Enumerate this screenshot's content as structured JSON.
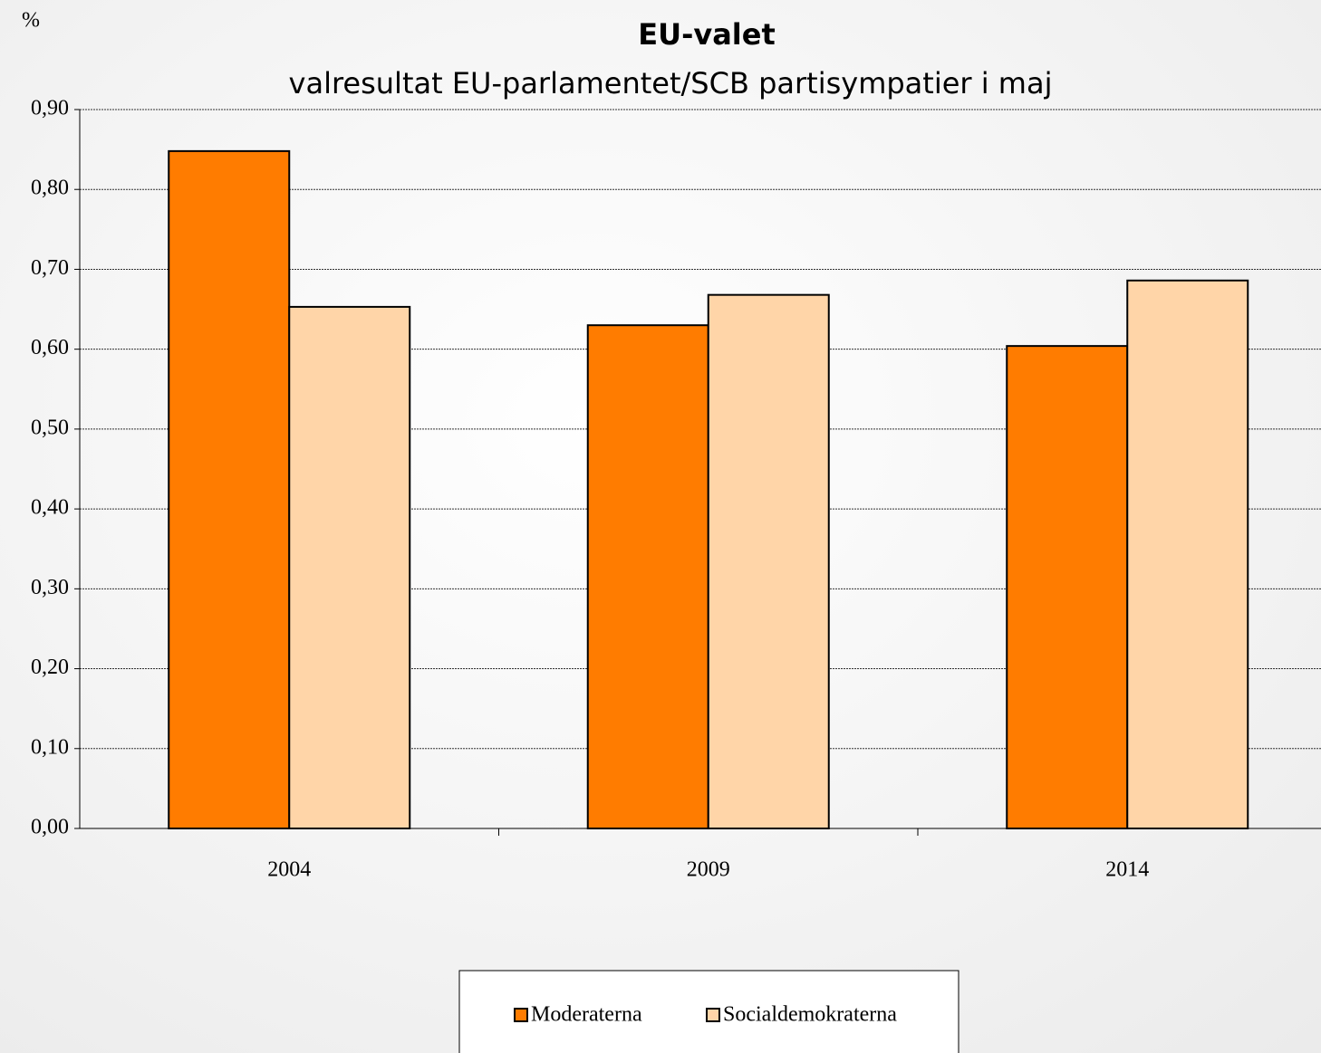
{
  "chart_data": {
    "type": "bar",
    "title": "EU-valet",
    "subtitle": "valresultat EU-parlamentet/SCB partisympatier i maj",
    "y_label": "%",
    "categories": [
      "2004",
      "2009",
      "2014"
    ],
    "series": [
      {
        "name": "Moderaterna",
        "color": "#ff7c00",
        "values": [
          0.848,
          0.63,
          0.604
        ]
      },
      {
        "name": "Socialdemokraterna",
        "color": "#ffd5a8",
        "values": [
          0.653,
          0.668,
          0.686
        ]
      }
    ],
    "ylim": [
      0,
      0.9
    ],
    "yticks": [
      {
        "value": 0,
        "label": "0,00"
      },
      {
        "value": 0.1,
        "label": "0,10"
      },
      {
        "value": 0.2,
        "label": "0,20"
      },
      {
        "value": 0.3,
        "label": "0,30"
      },
      {
        "value": 0.4,
        "label": "0,40"
      },
      {
        "value": 0.5,
        "label": "0,50"
      },
      {
        "value": 0.6,
        "label": "0,60"
      },
      {
        "value": 0.7,
        "label": "0,70"
      },
      {
        "value": 0.8,
        "label": "0,80"
      },
      {
        "value": 0.9,
        "label": "0,90"
      }
    ],
    "grid": true,
    "legend": "bottom"
  }
}
